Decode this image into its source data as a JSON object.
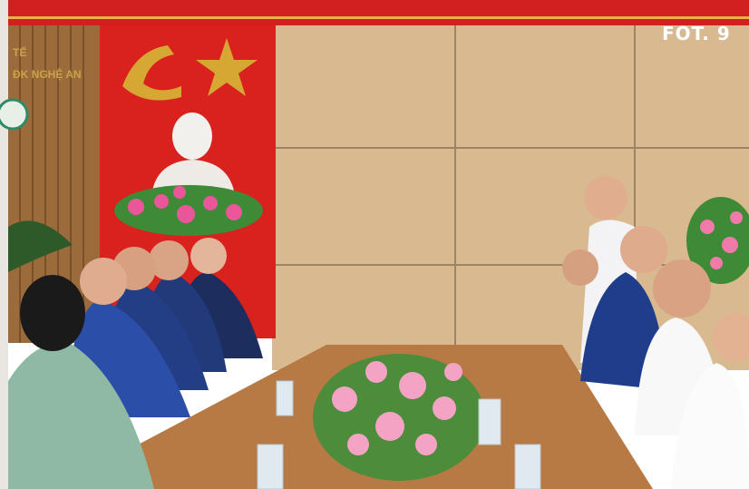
{
  "caption": "FOT. 9",
  "sign": {
    "line1": "TẾ",
    "line2": "ĐK NGHỆ AN"
  }
}
